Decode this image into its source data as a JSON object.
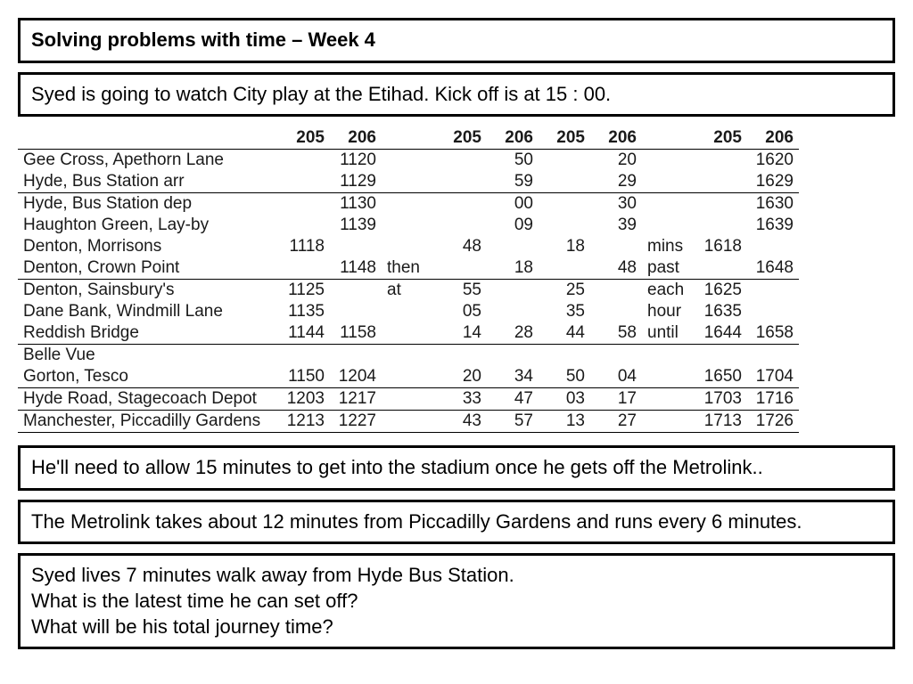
{
  "title": "Solving problems with time – Week 4",
  "intro": "Syed is going to watch City play at the Etihad. Kick off is at 15 : 00.",
  "info1": "He'll need to allow 15 minutes to get into the stadium once he gets off the Metrolink..",
  "info2": "The Metrolink takes about 12 minutes from Piccadilly Gardens and runs every 6 minutes.",
  "question": "Syed lives 7 minutes walk away from Hyde Bus Station.\nWhat is the latest time he can set off?\nWhat will be his total journey time?",
  "timetable": {
    "text_color": "#1a1a1a",
    "rule_color": "#000000",
    "font_size": 19,
    "header": [
      "205",
      "206",
      "",
      "205",
      "206",
      "205",
      "206",
      "",
      "205",
      "206"
    ],
    "aux_header_index": 2,
    "aux_col_index": 7,
    "stops": [
      {
        "name": "Gee Cross, Apethorn Lane",
        "cells": [
          "",
          "1120",
          "",
          "",
          "50",
          "",
          "20",
          "",
          "",
          "1620"
        ],
        "sep": false
      },
      {
        "name": "Hyde, Bus Station arr",
        "cells": [
          "",
          "1129",
          "",
          "",
          "59",
          "",
          "29",
          "",
          "",
          "1629"
        ],
        "sep": true
      },
      {
        "name": "Hyde, Bus Station dep",
        "cells": [
          "",
          "1130",
          "",
          "",
          "00",
          "",
          "30",
          "",
          "",
          "1630"
        ],
        "sep": false
      },
      {
        "name": "Haughton Green, Lay-by",
        "cells": [
          "",
          "1139",
          "",
          "",
          "09",
          "",
          "39",
          "",
          "",
          "1639"
        ],
        "sep": false
      },
      {
        "name": "Denton, Morrisons",
        "cells": [
          "1118",
          "",
          "",
          "48",
          "",
          "18",
          "",
          "mins",
          "1618",
          ""
        ],
        "sep": false
      },
      {
        "name": "Denton, Crown Point",
        "cells": [
          "",
          "1148",
          "then",
          "",
          "18",
          "",
          "48",
          "past",
          "",
          "1648"
        ],
        "sep": true
      },
      {
        "name": "Denton, Sainsbury's",
        "cells": [
          "1125",
          "",
          "at",
          "55",
          "",
          "25",
          "",
          "each",
          "1625",
          ""
        ],
        "sep": false
      },
      {
        "name": "Dane Bank, Windmill Lane",
        "cells": [
          "1135",
          "",
          "",
          "05",
          "",
          "35",
          "",
          "hour",
          "1635",
          ""
        ],
        "sep": false
      },
      {
        "name": "Reddish Bridge",
        "cells": [
          "1144",
          "1158",
          "",
          "14",
          "28",
          "44",
          "58",
          "until",
          "1644",
          "1658"
        ],
        "sep": true
      },
      {
        "name": "Belle Vue",
        "cells": [
          "",
          "",
          "",
          "",
          "",
          "",
          "",
          "",
          "",
          ""
        ],
        "sep": false
      },
      {
        "name": "Gorton, Tesco",
        "cells": [
          "1150",
          "1204",
          "",
          "20",
          "34",
          "50",
          "04",
          "",
          "1650",
          "1704"
        ],
        "sep": true
      },
      {
        "name": "Hyde Road, Stagecoach Depot",
        "cells": [
          "1203",
          "1217",
          "",
          "33",
          "47",
          "03",
          "17",
          "",
          "1703",
          "1716"
        ],
        "sep": true
      },
      {
        "name": "Manchester, Piccadilly Gardens",
        "cells": [
          "1213",
          "1227",
          "",
          "43",
          "57",
          "13",
          "27",
          "",
          "1713",
          "1726"
        ],
        "sep": true
      }
    ]
  }
}
